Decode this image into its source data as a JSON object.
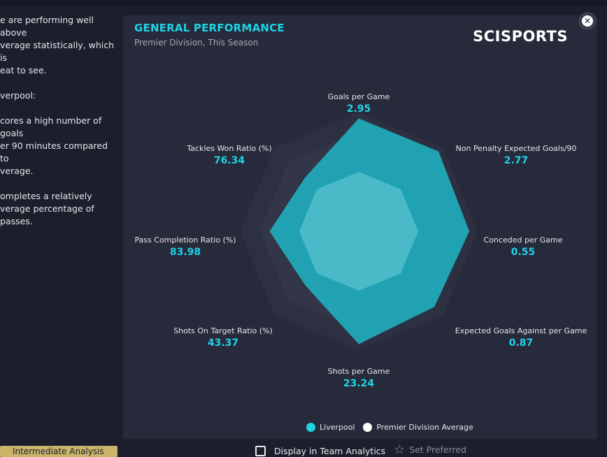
{
  "background": {
    "left_text": "e are performing well above\nverage statistically, which is\neat to see.\n\nverpool:\n\ncores a high number of goals\ner 90 minutes compared to\nverage.\n\nompletes a relatively\nverage percentage of passes."
  },
  "panel": {
    "title": "GENERAL PERFORMANCE",
    "subtitle": "Premier Division, This Season",
    "logo": "SCISPORTS"
  },
  "colors": {
    "accent": "#1fd3e6",
    "liverpool_fill": "#1eb6c8",
    "average_fill": "#7fd6df",
    "ring_dark": "#2f3242",
    "ring_light": "#3a3d50"
  },
  "chart_data": {
    "type": "radar",
    "title": "GENERAL PERFORMANCE",
    "axes": [
      {
        "label": "Goals per Game",
        "value": "2.95"
      },
      {
        "label": "Non Penalty Expected Goals/90",
        "value": "2.77"
      },
      {
        "label": "Conceded per Game",
        "value": "0.55"
      },
      {
        "label": "Expected Goals Against per Game",
        "value": "0.87"
      },
      {
        "label": "Shots per Game",
        "value": "23.24"
      },
      {
        "label": "Shots On Target Ratio (%)",
        "value": "43.37"
      },
      {
        "label": "Pass Completion Ratio (%)",
        "value": "83.98"
      },
      {
        "label": "Tackles Won Ratio (%)",
        "value": "76.34"
      }
    ],
    "series": [
      {
        "name": "Liverpool",
        "color": "#1eb6c8",
        "relative_values": [
          0.95,
          0.95,
          0.93,
          0.9,
          0.95,
          0.64,
          0.75,
          0.64
        ]
      },
      {
        "name": "Premier Division Average",
        "color": "#ffffff",
        "relative_values": [
          0.5,
          0.5,
          0.5,
          0.5,
          0.5,
          0.5,
          0.5,
          0.5
        ]
      }
    ],
    "rings": 6,
    "legend": "bottom"
  },
  "legend": {
    "liverpool": "Liverpool",
    "average": "Premier Division Average"
  },
  "bottom": {
    "tag": "Intermediate Analysis",
    "display_label": "Display in Team Analytics",
    "preferred_label": "Set Preferred"
  }
}
